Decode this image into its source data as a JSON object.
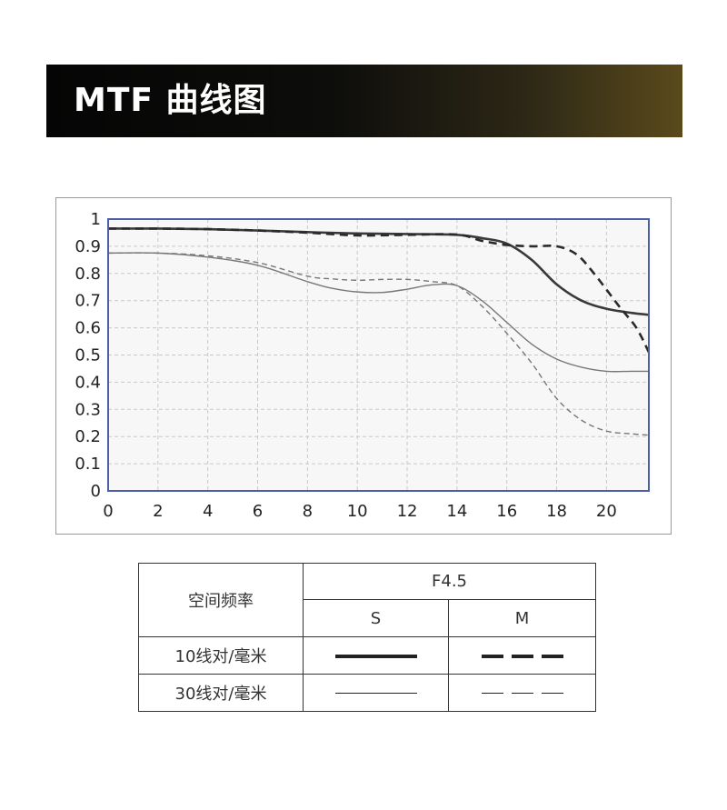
{
  "banner": {
    "title": "MTF 曲线图"
  },
  "chart_data": {
    "type": "line",
    "title": "",
    "xlabel": "",
    "ylabel": "",
    "xlim": [
      0,
      21.7
    ],
    "ylim": [
      0,
      1
    ],
    "xticks": [
      0,
      2,
      4,
      6,
      8,
      10,
      12,
      14,
      16,
      18,
      20
    ],
    "yticks": [
      0,
      0.1,
      0.2,
      0.3,
      0.4,
      0.5,
      0.6,
      0.7,
      0.8,
      0.9,
      1
    ],
    "ytick_labels": [
      "0",
      "0.1",
      "0.2",
      "0.3",
      "0.4",
      "0.5",
      "0.6",
      "0.7",
      "0.8",
      "0.9",
      "1"
    ],
    "grid": true,
    "series": [
      {
        "style": "thick-solid",
        "points": [
          [
            0,
            0.965
          ],
          [
            2,
            0.965
          ],
          [
            4,
            0.963
          ],
          [
            6,
            0.958
          ],
          [
            8,
            0.952
          ],
          [
            10,
            0.947
          ],
          [
            12,
            0.945
          ],
          [
            14,
            0.942
          ],
          [
            15,
            0.93
          ],
          [
            16,
            0.91
          ],
          [
            17,
            0.85
          ],
          [
            18,
            0.76
          ],
          [
            19,
            0.7
          ],
          [
            20,
            0.67
          ],
          [
            21,
            0.655
          ],
          [
            21.7,
            0.648
          ]
        ]
      },
      {
        "style": "thick-dash",
        "points": [
          [
            0,
            0.965
          ],
          [
            2,
            0.965
          ],
          [
            4,
            0.963
          ],
          [
            6,
            0.958
          ],
          [
            8,
            0.95
          ],
          [
            10,
            0.94
          ],
          [
            12,
            0.942
          ],
          [
            14,
            0.943
          ],
          [
            15,
            0.92
          ],
          [
            16,
            0.905
          ],
          [
            17,
            0.9
          ],
          [
            18,
            0.9
          ],
          [
            18.8,
            0.87
          ],
          [
            19.5,
            0.8
          ],
          [
            20.5,
            0.68
          ],
          [
            21.2,
            0.6
          ],
          [
            21.7,
            0.51
          ]
        ]
      },
      {
        "style": "thin-solid",
        "points": [
          [
            0,
            0.875
          ],
          [
            2,
            0.875
          ],
          [
            4,
            0.86
          ],
          [
            6,
            0.83
          ],
          [
            8,
            0.77
          ],
          [
            9,
            0.745
          ],
          [
            10,
            0.732
          ],
          [
            11,
            0.73
          ],
          [
            12,
            0.742
          ],
          [
            13,
            0.758
          ],
          [
            14,
            0.755
          ],
          [
            15,
            0.7
          ],
          [
            16,
            0.62
          ],
          [
            17,
            0.54
          ],
          [
            18,
            0.485
          ],
          [
            19,
            0.455
          ],
          [
            20,
            0.44
          ],
          [
            21,
            0.44
          ],
          [
            21.7,
            0.44
          ]
        ]
      },
      {
        "style": "thin-dash",
        "points": [
          [
            0,
            0.875
          ],
          [
            2,
            0.875
          ],
          [
            4,
            0.865
          ],
          [
            6,
            0.84
          ],
          [
            8,
            0.79
          ],
          [
            9,
            0.78
          ],
          [
            10,
            0.775
          ],
          [
            11,
            0.778
          ],
          [
            12,
            0.778
          ],
          [
            13,
            0.77
          ],
          [
            14,
            0.755
          ],
          [
            15,
            0.68
          ],
          [
            16,
            0.58
          ],
          [
            17,
            0.47
          ],
          [
            18,
            0.34
          ],
          [
            19,
            0.26
          ],
          [
            20,
            0.22
          ],
          [
            21,
            0.21
          ],
          [
            21.7,
            0.205
          ]
        ]
      }
    ]
  },
  "legend": {
    "header_label": "空间频率",
    "aperture": "F4.5",
    "col_s": "S",
    "col_m": "M",
    "row1_label": "10线对/毫米",
    "row2_label": "30线对/毫米"
  }
}
